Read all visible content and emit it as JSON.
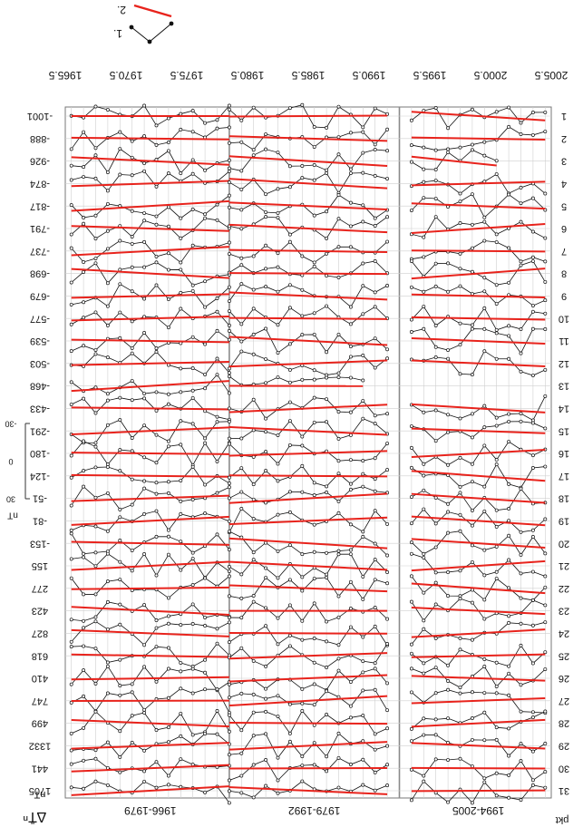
{
  "chart_data": {
    "type": "line",
    "orientation": "mirrored",
    "header_left": "∆T̄ⁿ",
    "unit_label": "nT",
    "point_label": "pkt",
    "years": [
      "1965.5",
      "1970.5",
      "1975.5",
      "1980.5",
      "1985.5",
      "1990.5",
      "1995.5",
      "2000.5",
      "2005.5"
    ],
    "periods": [
      "1966-1979",
      "1979-1992",
      "1994-2005"
    ],
    "legend": [
      {
        "marker": "1."
      },
      {
        "marker": "2."
      }
    ],
    "scale": {
      "ticks": [
        "-30",
        "0",
        "30"
      ],
      "unit": "nT"
    },
    "points": [
      {
        "id": "1",
        "offset": "-1001"
      },
      {
        "id": "2",
        "offset": "-888"
      },
      {
        "id": "3",
        "offset": "-926"
      },
      {
        "id": "4",
        "offset": "-874"
      },
      {
        "id": "5",
        "offset": "-817"
      },
      {
        "id": "6",
        "offset": "-791"
      },
      {
        "id": "7",
        "offset": "-737"
      },
      {
        "id": "8",
        "offset": "-698"
      },
      {
        "id": "9",
        "offset": "-679"
      },
      {
        "id": "10",
        "offset": "-577"
      },
      {
        "id": "11",
        "offset": "-539"
      },
      {
        "id": "12",
        "offset": "-503"
      },
      {
        "id": "13",
        "offset": "-468"
      },
      {
        "id": "14",
        "offset": "-433"
      },
      {
        "id": "15",
        "offset": "-291"
      },
      {
        "id": "16",
        "offset": "-180"
      },
      {
        "id": "17",
        "offset": "-124"
      },
      {
        "id": "18",
        "offset": "-51"
      },
      {
        "id": "19",
        "offset": "-81"
      },
      {
        "id": "20",
        "offset": "-153"
      },
      {
        "id": "21",
        "offset": "155"
      },
      {
        "id": "22",
        "offset": "277"
      },
      {
        "id": "23",
        "offset": "423"
      },
      {
        "id": "24",
        "offset": "827"
      },
      {
        "id": "25",
        "offset": "618"
      },
      {
        "id": "26",
        "offset": "410"
      },
      {
        "id": "27",
        "offset": "747"
      },
      {
        "id": "28",
        "offset": "499"
      },
      {
        "id": "29",
        "offset": "1332"
      },
      {
        "id": "30",
        "offset": "441"
      },
      {
        "id": "31",
        "offset": "1705"
      }
    ]
  },
  "colors": {
    "trend": "#e8231c",
    "series": "#111111",
    "grid": "#cfcfcf",
    "period_divider": "#8a8a8a"
  }
}
